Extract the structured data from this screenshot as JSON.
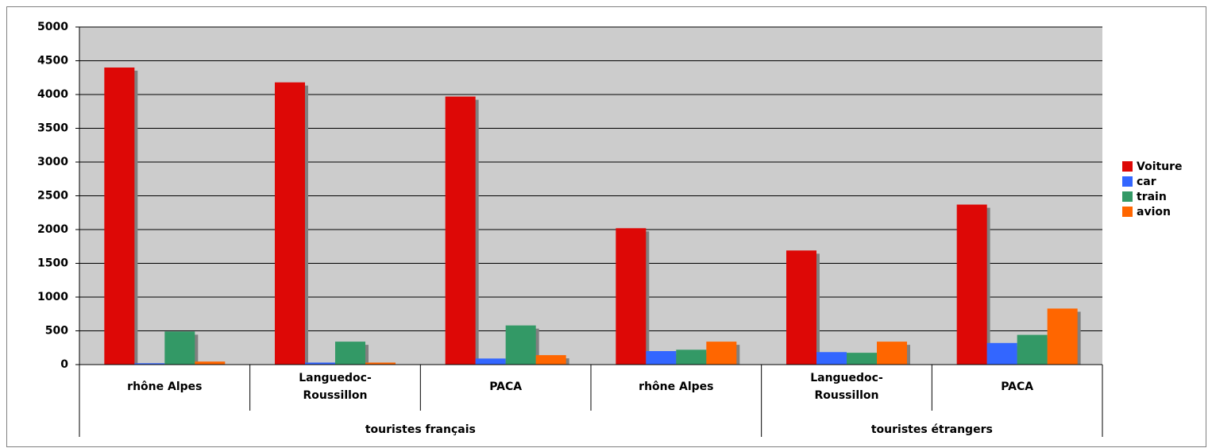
{
  "chart_data": {
    "type": "bar",
    "groups": [
      {
        "name": "touristes français",
        "categories": [
          "rhône Alpes",
          "Languedoc-Roussillon",
          "PACA",
          "rhône Alpes"
        ]
      },
      {
        "name": "touristes étrangers",
        "categories": [
          "Languedoc-Roussillon",
          "PACA"
        ]
      }
    ],
    "series": [
      {
        "name": "Voiture",
        "color": "#dd0806",
        "values": [
          4400,
          4180,
          3970,
          2020,
          1690,
          2370
        ]
      },
      {
        "name": "car",
        "color": "#3366ff",
        "values": [
          20,
          30,
          90,
          200,
          185,
          320
        ]
      },
      {
        "name": "train",
        "color": "#339966",
        "values": [
          490,
          340,
          580,
          220,
          175,
          440
        ]
      },
      {
        "name": "avion",
        "color": "#ff6600",
        "values": [
          45,
          30,
          140,
          340,
          340,
          830
        ]
      }
    ],
    "ylim": [
      0,
      5000
    ],
    "yticks": [
      0,
      500,
      1000,
      1500,
      2000,
      2500,
      3000,
      3500,
      4000,
      4500,
      5000
    ],
    "grid": true,
    "legend": "right"
  }
}
